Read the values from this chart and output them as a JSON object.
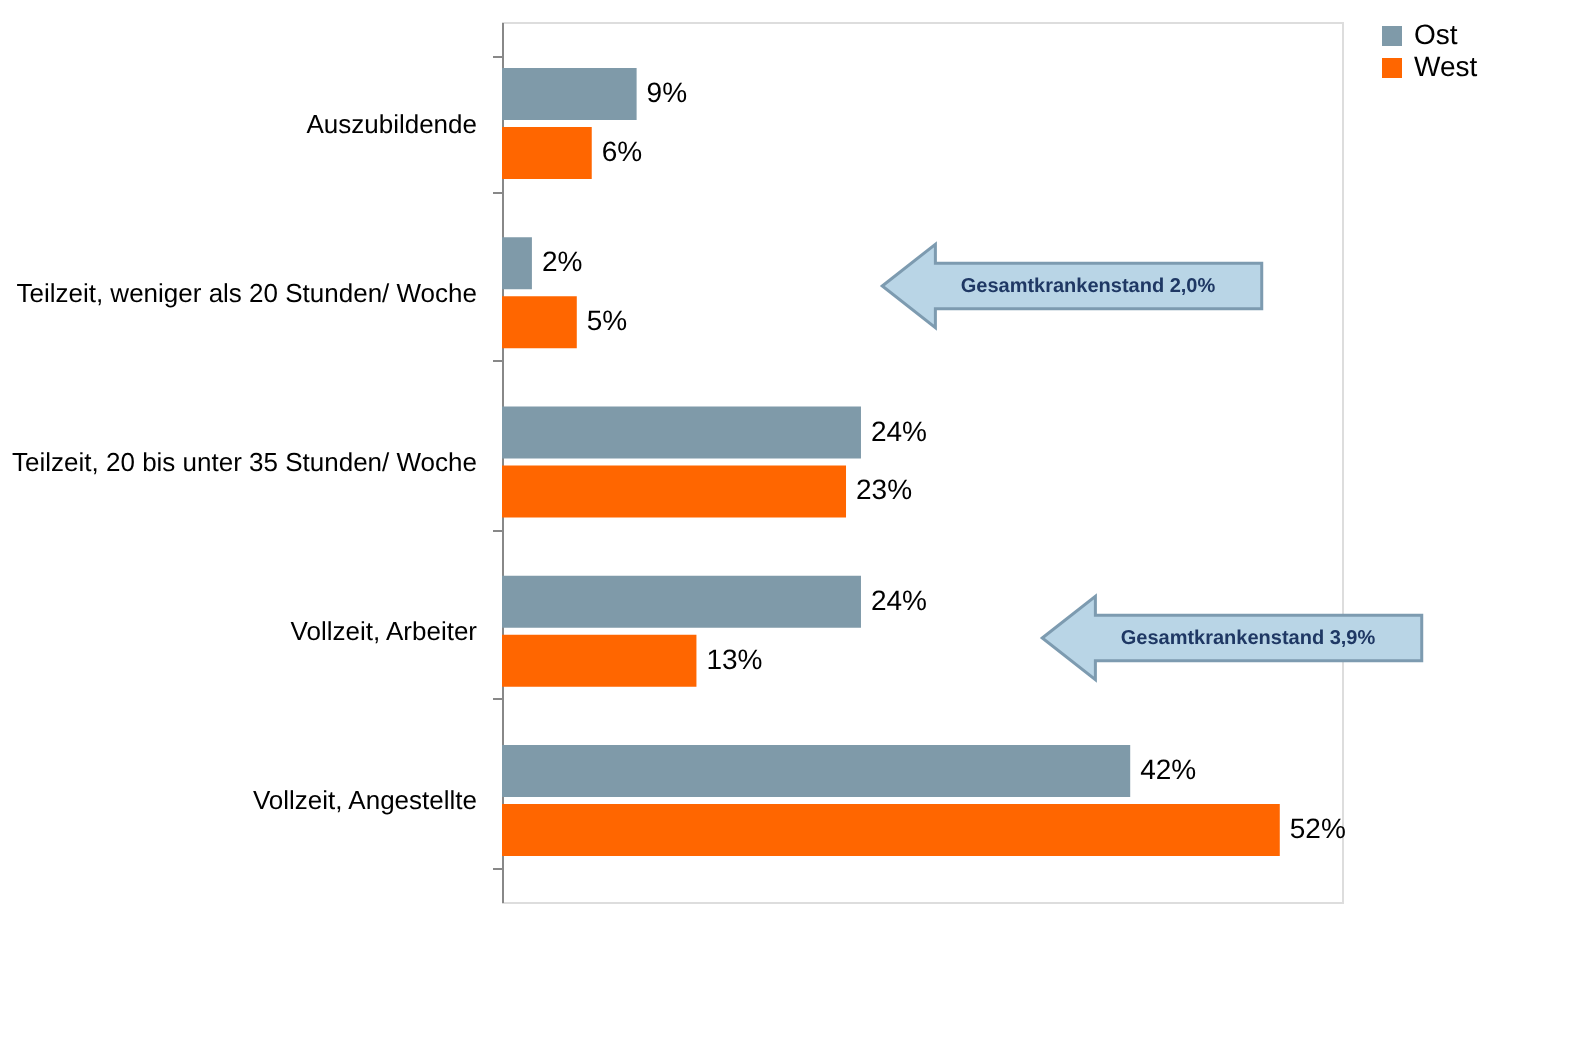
{
  "chart_data": {
    "type": "bar",
    "orientation": "horizontal",
    "categories": [
      "Auszubildende",
      "Teilzeit, weniger als 20 Stunden/ Woche",
      "Teilzeit, 20 bis unter 35 Stunden/ Woche",
      "Vollzeit, Arbeiter",
      "Vollzeit, Angestellte"
    ],
    "series": [
      {
        "name": "Ost",
        "color": "#7f9aa9",
        "values": [
          9,
          2,
          24,
          24,
          42
        ],
        "value_labels": [
          "9%",
          "2%",
          "24%",
          "24%",
          "42%"
        ]
      },
      {
        "name": "West",
        "color": "#ff6600",
        "values": [
          6,
          5,
          23,
          13,
          52
        ],
        "value_labels": [
          "6%",
          "5%",
          "23%",
          "13%",
          "52%"
        ]
      }
    ],
    "annotations": [
      "Gesamtkrankenstand 2,0%",
      "Gesamtkrankenstand 3,9%"
    ],
    "legend": "right",
    "grid": false
  }
}
